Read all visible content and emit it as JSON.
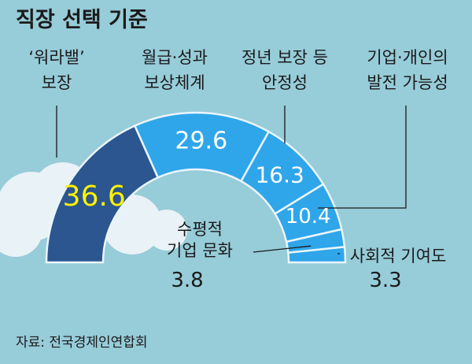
{
  "chart_data": {
    "type": "pie",
    "title": "직장 선택 기준",
    "source": "자료: 전국경제인연합회",
    "unit": "%",
    "slices": [
      {
        "label_lines": [
          "‘워라밸’",
          "보장"
        ],
        "value": 36.6
      },
      {
        "label_lines": [
          "월급·성과",
          "보상체계"
        ],
        "value": 29.6
      },
      {
        "label_lines": [
          "정년 보장 등",
          "안정성"
        ],
        "value": 16.3
      },
      {
        "label_lines": [
          "기업·개인의",
          "발전 가능성"
        ],
        "value": 10.4
      },
      {
        "label_lines": [
          "수평적",
          "기업 문화"
        ],
        "value": 3.8
      },
      {
        "label_lines": [
          "사회적 기여도"
        ],
        "value": 3.3
      }
    ],
    "value_labels": [
      "36.6",
      "29.6",
      "16.3",
      "10.4",
      "3.8",
      "3.3"
    ]
  },
  "colors": {
    "background": "#97ccd9",
    "highlight_slice": "#2b5690",
    "other_slices": "#2fa6ea",
    "slice_divider": "#eaf5fb",
    "highlight_value_text": "#fff200",
    "value_text": "#ffffff",
    "label_text": "#1a1a1a",
    "cloud": "#e9f2f6"
  }
}
